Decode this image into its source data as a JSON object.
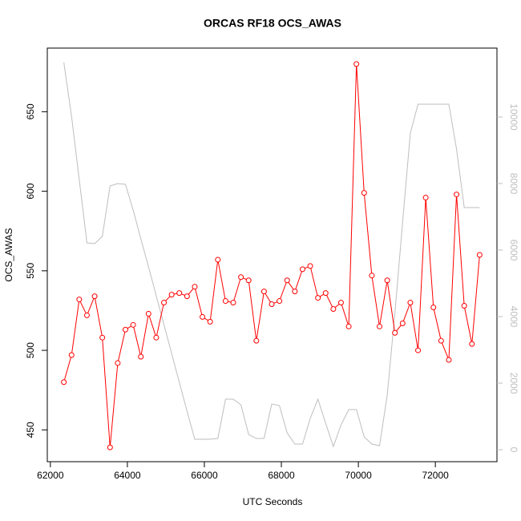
{
  "chart_data": {
    "type": "line",
    "title": "ORCAS RF18 OCS_AWAS",
    "x_label": "UTC Seconds",
    "y_label": "OCS_AWAS",
    "x": [
      62350,
      62550,
      62750,
      62950,
      63150,
      63350,
      63550,
      63750,
      63950,
      64150,
      64350,
      64550,
      64750,
      64950,
      65150,
      65350,
      65550,
      65750,
      65950,
      66150,
      66350,
      66550,
      66750,
      66950,
      67150,
      67350,
      67550,
      67750,
      67950,
      68150,
      68350,
      68550,
      68750,
      68950,
      69150,
      69350,
      69550,
      69750,
      69950,
      70150,
      70350,
      70550,
      70750,
      70950,
      71150,
      71350,
      71550,
      71750,
      71950,
      72150,
      72350,
      72550,
      72750,
      72950,
      73150
    ],
    "series": [
      {
        "color": "#ff0000",
        "markers": true,
        "values": [
          480,
          497,
          532,
          522,
          534,
          508,
          439,
          492,
          513,
          516,
          496,
          523,
          508,
          530,
          535,
          536,
          534,
          540,
          521,
          518,
          557,
          531,
          530,
          546,
          544,
          506,
          537,
          529,
          531,
          544,
          537,
          551,
          553,
          533,
          536,
          526,
          530,
          515,
          680,
          599,
          547,
          515,
          544,
          511,
          517,
          530,
          500,
          596,
          527,
          506,
          494,
          598,
          528,
          504,
          560
        ]
      },
      {
        "color": "#bebebe",
        "axis": "y2",
        "markers": false,
        "values": [
          11640,
          10024,
          8120,
          6217,
          6193,
          6410,
          7928,
          8000,
          7976,
          7205,
          6337,
          5494,
          4627,
          3759,
          2892,
          2024,
          1157,
          313,
          313,
          313,
          337,
          1518,
          1518,
          1349,
          458,
          337,
          337,
          1373,
          1325,
          506,
          169,
          169,
          940,
          1518,
          795,
          96,
          747,
          1205,
          1205,
          386,
          169,
          120,
          1639,
          4120,
          6843,
          9518,
          10386,
          10386,
          10386,
          10386,
          10386,
          9036,
          7277,
          7277,
          7277
        ]
      }
    ],
    "xlim": [
      61920,
      73600
    ],
    "xticks": [
      62000,
      64000,
      66000,
      68000,
      70000,
      72000
    ],
    "ylim": [
      430,
      690
    ],
    "yticks": [
      450,
      500,
      550,
      600,
      650
    ],
    "y2lim": [
      -361,
      12072
    ],
    "y2ticks": [
      0,
      2000,
      4000,
      6000,
      8000,
      10000
    ],
    "y2_color": "#bebebe"
  }
}
